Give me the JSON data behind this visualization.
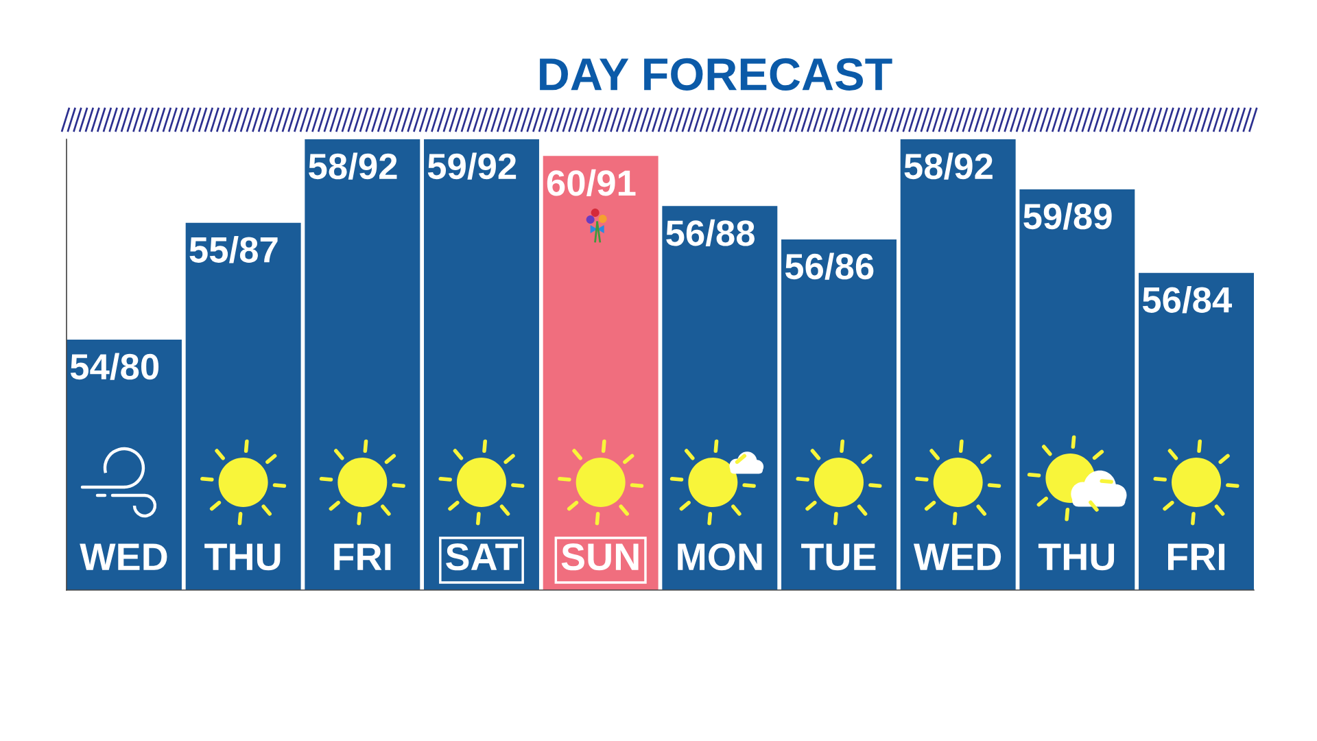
{
  "chart_data": {
    "type": "bar",
    "title": "DAY FORECAST",
    "categories": [
      "WED",
      "THU",
      "FRI",
      "SAT",
      "SUN",
      "MON",
      "TUE",
      "WED",
      "THU",
      "FRI"
    ],
    "values": [
      80,
      87,
      92,
      92,
      91,
      88,
      86,
      92,
      89,
      84
    ],
    "value_labels": [
      "54/80",
      "55/87",
      "58/92",
      "59/92",
      "60/91",
      "56/88",
      "56/86",
      "58/92",
      "59/89",
      "56/84"
    ],
    "colors": [
      "#1a5c98",
      "#1a5c98",
      "#1a5c98",
      "#1a5c98",
      "#f06e7e",
      "#1a5c98",
      "#1a5c98",
      "#1a5c98",
      "#1a5c98",
      "#1a5c98"
    ],
    "ylim": [
      65,
      92
    ],
    "tick_labels": "x"
  }
}
